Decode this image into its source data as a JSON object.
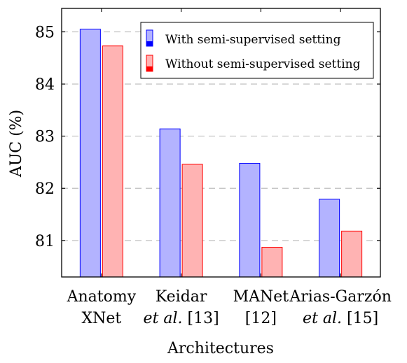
{
  "chart_data": {
    "type": "bar",
    "ylabel": "AUC (%)",
    "xlabel": "Architectures",
    "ylim": [
      80.3,
      85.45
    ],
    "yticks": [
      81,
      82,
      83,
      84,
      85
    ],
    "grid": "y-dashed",
    "legend_placement": "top-right",
    "categories": [
      [
        "Anatomy",
        "XNet"
      ],
      [
        "Keidar",
        "et al. [13]"
      ],
      [
        "MANet",
        "[12]"
      ],
      [
        "Arias-Garzón",
        "et al. [15]"
      ]
    ],
    "series": [
      {
        "name": "With semi-supervised setting",
        "values": [
          85.05,
          83.14,
          82.48,
          81.79
        ],
        "fill": "#b3b3ff",
        "stroke": "#0000ff"
      },
      {
        "name": "Without semi-supervised setting",
        "values": [
          84.73,
          82.46,
          80.87,
          81.18
        ],
        "fill": "#ffb3b3",
        "stroke": "#ff0000"
      }
    ]
  }
}
